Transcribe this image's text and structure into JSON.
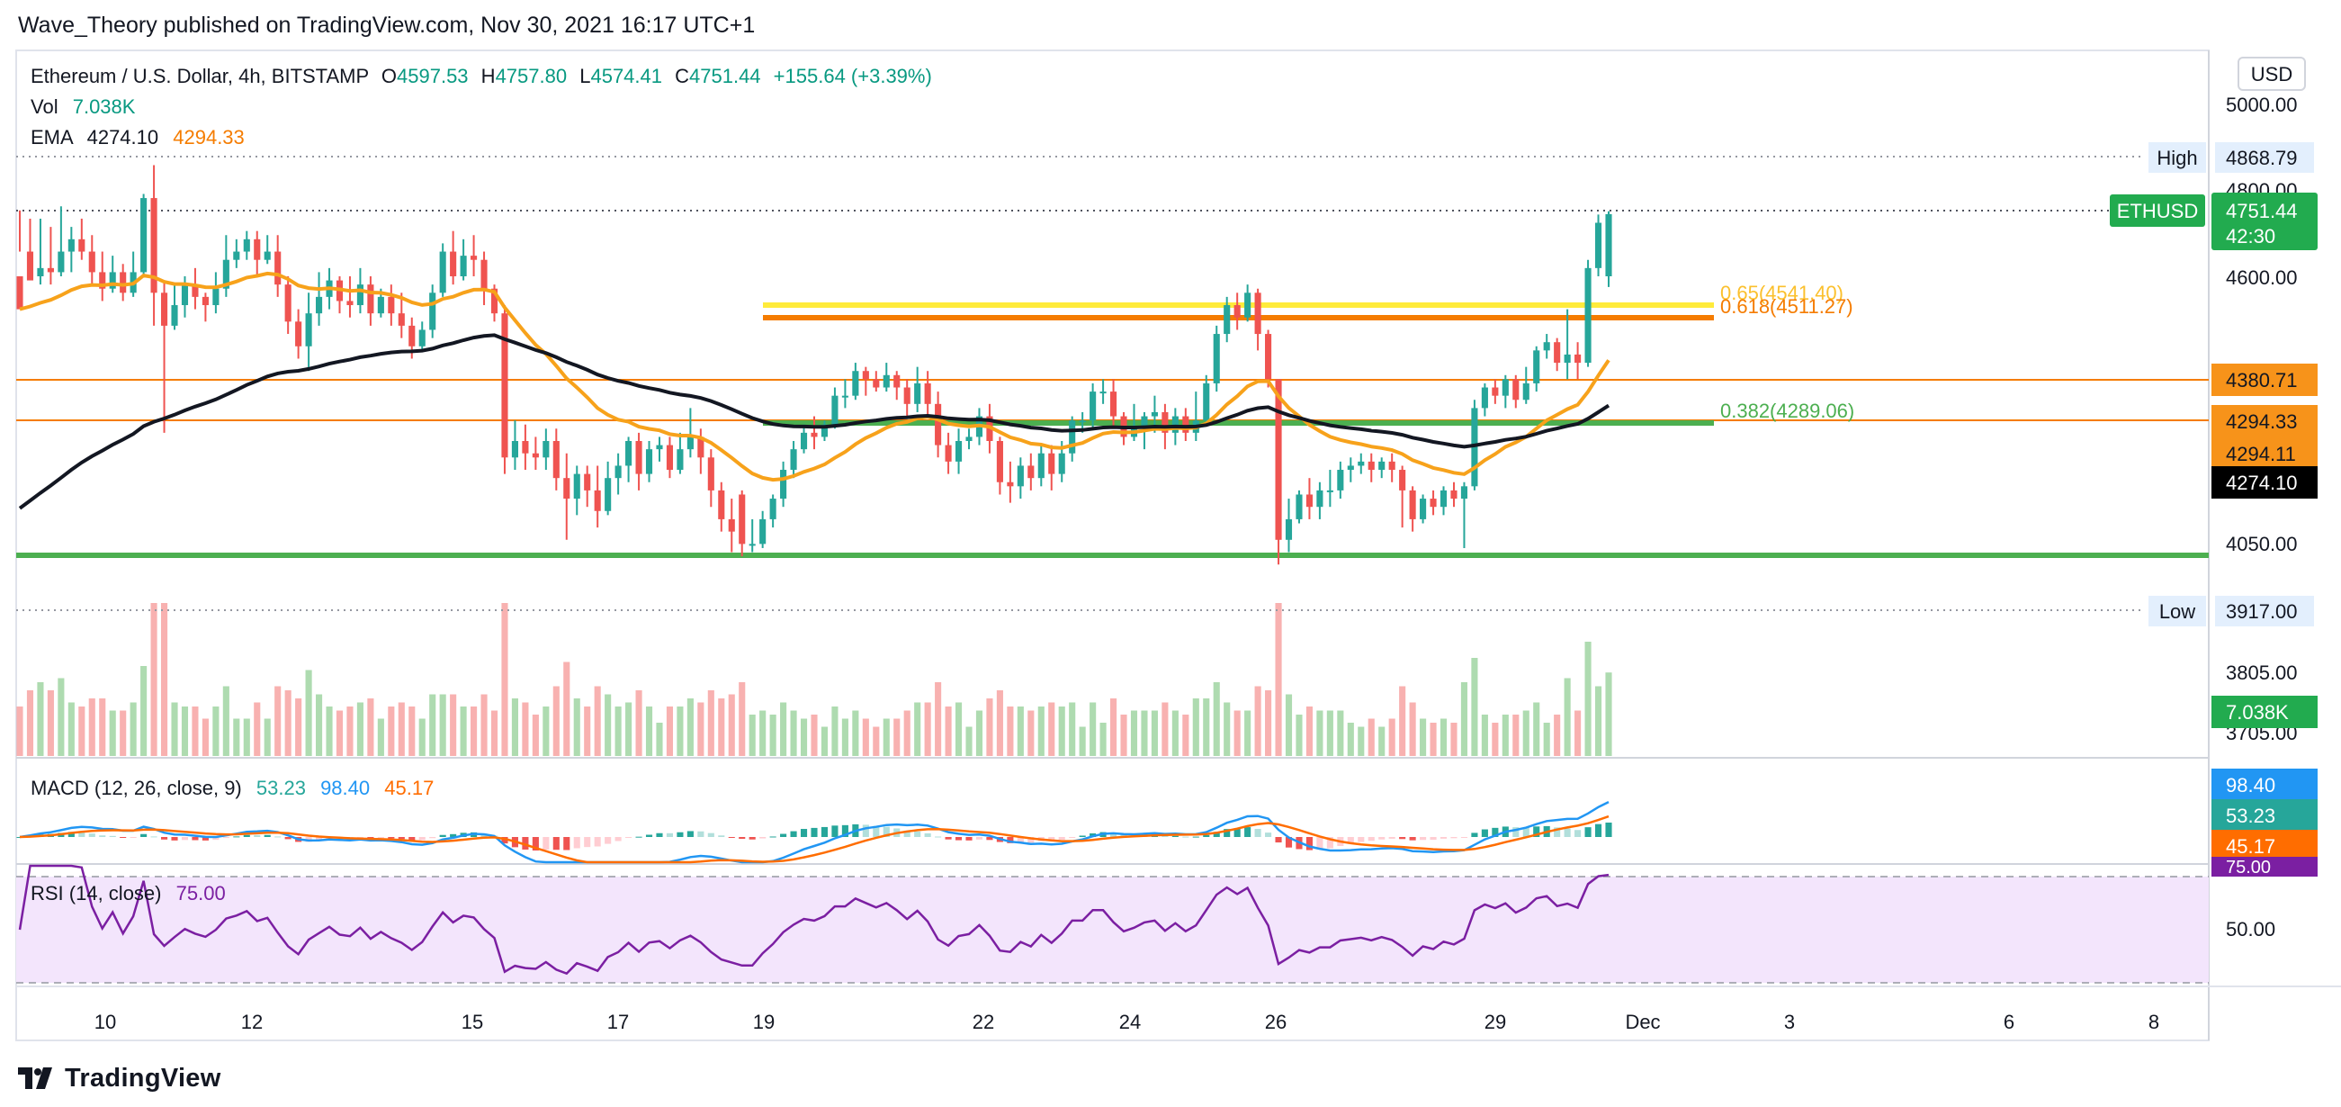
{
  "header": {
    "published": "Wave_Theory published on TradingView.com, Nov 30, 2021 16:17 UTC+1"
  },
  "footer": {
    "brand": "TradingView"
  },
  "legend": {
    "symbol": "Ethereum / U.S. Dollar, 4h, BITSTAMP",
    "open_key": "O",
    "open": "4597.53",
    "high_key": "H",
    "high": "4757.80",
    "low_key": "L",
    "low": "4574.41",
    "close_key": "C",
    "close": "4751.44",
    "change": "+155.64 (+3.39%)",
    "vol_label": "Vol",
    "vol_value": "7.038K",
    "ema_label": "EMA",
    "ema_value_1": "4274.10",
    "ema_value_2": "4294.33"
  },
  "price_axis": {
    "currency": "USD",
    "ticks": [
      "5000.00",
      "4800.00",
      "4600.00",
      "4050.00",
      "3805.00",
      "3705.00"
    ],
    "high_label": "High",
    "high_value": "4868.79",
    "low_label": "Low",
    "low_value": "3917.00",
    "symbol_tag": "ETHUSD",
    "last_price": "4751.44",
    "countdown": "42:30",
    "badges": {
      "level_upper": "4380.71",
      "ema_orange": "4294.33",
      "level_lower": "4294.11",
      "ema_black": "4274.10",
      "volume": "7.038K"
    }
  },
  "fib_levels": [
    {
      "label": "0.65(4541.40)",
      "color": "#fbc02d"
    },
    {
      "label": "0.618(4511.27)",
      "color": "#f57c00"
    },
    {
      "label": "0.382(4289.06)",
      "color": "#4caf50"
    }
  ],
  "macd_pane": {
    "title": "MACD (12, 26, close, 9)",
    "hist": "53.23",
    "macd": "98.40",
    "signal": "45.17",
    "colors": {
      "hist": "#26a69a",
      "macd": "#2196f3",
      "signal": "#ff6d00"
    }
  },
  "rsi_pane": {
    "title": "RSI (14, close)",
    "value": "75.00",
    "tick": "50.00"
  },
  "time_axis": {
    "ticks": [
      "10",
      "12",
      "15",
      "17",
      "19",
      "22",
      "24",
      "26",
      "29",
      "Dec",
      "3",
      "6",
      "8"
    ]
  },
  "chart_data": {
    "type": "candlestick",
    "symbol": "Ethereum / U.S. Dollar",
    "interval": "4h",
    "ylim": [
      3700,
      5000
    ],
    "candles": [
      [
        4600,
        4520,
        4760,
        4660
      ],
      [
        4660,
        4590,
        4740,
        4600
      ],
      [
        4600,
        4620,
        4740,
        4580
      ],
      [
        4620,
        4610,
        4720,
        4580
      ],
      [
        4610,
        4660,
        4770,
        4600
      ],
      [
        4660,
        4690,
        4720,
        4610
      ],
      [
        4690,
        4660,
        4740,
        4640
      ],
      [
        4660,
        4610,
        4700,
        4580
      ],
      [
        4610,
        4570,
        4660,
        4540
      ],
      [
        4570,
        4610,
        4650,
        4560
      ],
      [
        4610,
        4560,
        4630,
        4540
      ],
      [
        4560,
        4610,
        4660,
        4550
      ],
      [
        4610,
        4790,
        4800,
        4600
      ],
      [
        4790,
        4560,
        4870,
        4480
      ],
      [
        4560,
        4480,
        4590,
        4220
      ],
      [
        4480,
        4530,
        4580,
        4470
      ],
      [
        4530,
        4580,
        4600,
        4500
      ],
      [
        4580,
        4550,
        4620,
        4520
      ],
      [
        4550,
        4530,
        4560,
        4490
      ],
      [
        4530,
        4570,
        4610,
        4510
      ],
      [
        4570,
        4640,
        4700,
        4550
      ],
      [
        4640,
        4660,
        4690,
        4620
      ],
      [
        4660,
        4690,
        4710,
        4640
      ],
      [
        4690,
        4640,
        4710,
        4600
      ],
      [
        4640,
        4660,
        4700,
        4630
      ],
      [
        4660,
        4580,
        4700,
        4550
      ],
      [
        4580,
        4490,
        4600,
        4460
      ],
      [
        4490,
        4430,
        4520,
        4400
      ],
      [
        4430,
        4510,
        4560,
        4370
      ],
      [
        4510,
        4550,
        4610,
        4480
      ],
      [
        4550,
        4590,
        4620,
        4520
      ],
      [
        4590,
        4540,
        4600,
        4510
      ],
      [
        4540,
        4530,
        4600,
        4500
      ],
      [
        4530,
        4580,
        4620,
        4510
      ],
      [
        4580,
        4510,
        4600,
        4480
      ],
      [
        4510,
        4550,
        4570,
        4500
      ],
      [
        4550,
        4510,
        4580,
        4480
      ],
      [
        4510,
        4480,
        4560,
        4450
      ],
      [
        4480,
        4430,
        4500,
        4400
      ],
      [
        4430,
        4470,
        4490,
        4420
      ],
      [
        4470,
        4560,
        4580,
        4450
      ],
      [
        4560,
        4660,
        4680,
        4550
      ],
      [
        4660,
        4600,
        4710,
        4580
      ],
      [
        4600,
        4650,
        4690,
        4590
      ],
      [
        4650,
        4640,
        4700,
        4600
      ],
      [
        4640,
        4570,
        4660,
        4530
      ],
      [
        4570,
        4510,
        4580,
        4490
      ],
      [
        4510,
        4160,
        4530,
        4120
      ],
      [
        4160,
        4200,
        4250,
        4130
      ],
      [
        4200,
        4170,
        4240,
        4130
      ],
      [
        4170,
        4160,
        4210,
        4130
      ],
      [
        4160,
        4200,
        4230,
        4130
      ],
      [
        4200,
        4110,
        4230,
        4080
      ],
      [
        4110,
        4060,
        4170,
        3960
      ],
      [
        4060,
        4120,
        4140,
        4020
      ],
      [
        4120,
        4080,
        4140,
        4040
      ],
      [
        4080,
        4030,
        4140,
        3990
      ],
      [
        4030,
        4110,
        4150,
        4020
      ],
      [
        4110,
        4140,
        4170,
        4070
      ],
      [
        4140,
        4200,
        4210,
        4100
      ],
      [
        4200,
        4120,
        4220,
        4080
      ],
      [
        4120,
        4180,
        4200,
        4100
      ],
      [
        4180,
        4190,
        4210,
        4150
      ],
      [
        4190,
        4130,
        4210,
        4110
      ],
      [
        4130,
        4180,
        4220,
        4120
      ],
      [
        4180,
        4210,
        4280,
        4160
      ],
      [
        4210,
        4160,
        4230,
        4120
      ],
      [
        4160,
        4080,
        4180,
        4040
      ],
      [
        4080,
        4010,
        4100,
        3980
      ],
      [
        4010,
        3980,
        4060,
        3930
      ],
      [
        4070,
        3950,
        4080,
        3920
      ],
      [
        3950,
        3950,
        4010,
        3930
      ],
      [
        3950,
        4010,
        4030,
        3940
      ],
      [
        4010,
        4060,
        4070,
        3990
      ],
      [
        4060,
        4130,
        4150,
        4040
      ],
      [
        4130,
        4180,
        4200,
        4110
      ],
      [
        4180,
        4220,
        4240,
        4170
      ],
      [
        4220,
        4210,
        4260,
        4180
      ],
      [
        4210,
        4240,
        4250,
        4200
      ],
      [
        4240,
        4310,
        4330,
        4230
      ],
      [
        4310,
        4310,
        4350,
        4280
      ],
      [
        4310,
        4370,
        4390,
        4300
      ],
      [
        4370,
        4350,
        4380,
        4310
      ],
      [
        4350,
        4330,
        4370,
        4320
      ],
      [
        4330,
        4360,
        4390,
        4320
      ],
      [
        4360,
        4330,
        4370,
        4300
      ],
      [
        4330,
        4290,
        4350,
        4260
      ],
      [
        4290,
        4340,
        4380,
        4270
      ],
      [
        4340,
        4290,
        4370,
        4260
      ],
      [
        4290,
        4190,
        4320,
        4160
      ],
      [
        4190,
        4150,
        4220,
        4120
      ],
      [
        4150,
        4200,
        4230,
        4120
      ],
      [
        4200,
        4210,
        4230,
        4180
      ],
      [
        4210,
        4260,
        4280,
        4190
      ],
      [
        4260,
        4200,
        4290,
        4170
      ],
      [
        4200,
        4100,
        4210,
        4070
      ],
      [
        4100,
        4090,
        4150,
        4050
      ],
      [
        4090,
        4140,
        4160,
        4060
      ],
      [
        4140,
        4110,
        4170,
        4080
      ],
      [
        4110,
        4170,
        4190,
        4090
      ],
      [
        4170,
        4120,
        4190,
        4080
      ],
      [
        4120,
        4170,
        4200,
        4100
      ],
      [
        4170,
        4250,
        4260,
        4150
      ],
      [
        4250,
        4250,
        4270,
        4220
      ],
      [
        4250,
        4320,
        4340,
        4230
      ],
      [
        4320,
        4320,
        4350,
        4290
      ],
      [
        4320,
        4260,
        4350,
        4230
      ],
      [
        4260,
        4210,
        4270,
        4190
      ],
      [
        4210,
        4230,
        4290,
        4200
      ],
      [
        4230,
        4260,
        4270,
        4180
      ],
      [
        4260,
        4270,
        4310,
        4220
      ],
      [
        4270,
        4220,
        4290,
        4180
      ],
      [
        4220,
        4260,
        4280,
        4190
      ],
      [
        4260,
        4220,
        4280,
        4200
      ],
      [
        4220,
        4250,
        4320,
        4200
      ],
      [
        4250,
        4340,
        4360,
        4240
      ],
      [
        4340,
        4460,
        4480,
        4320
      ],
      [
        4460,
        4530,
        4550,
        4440
      ],
      [
        4530,
        4500,
        4560,
        4470
      ],
      [
        4500,
        4560,
        4580,
        4490
      ],
      [
        4560,
        4460,
        4570,
        4420
      ],
      [
        4460,
        4350,
        4470,
        4330
      ],
      [
        4350,
        3960,
        4350,
        3900
      ],
      [
        3960,
        4010,
        4060,
        3930
      ],
      [
        4010,
        4070,
        4080,
        4000
      ],
      [
        4070,
        4040,
        4110,
        4010
      ],
      [
        4040,
        4080,
        4100,
        4010
      ],
      [
        4080,
        4080,
        4130,
        4040
      ],
      [
        4080,
        4130,
        4150,
        4060
      ],
      [
        4130,
        4140,
        4160,
        4100
      ],
      [
        4140,
        4150,
        4170,
        4120
      ],
      [
        4150,
        4130,
        4170,
        4100
      ],
      [
        4130,
        4150,
        4160,
        4110
      ],
      [
        4150,
        4130,
        4170,
        4100
      ],
      [
        4130,
        4080,
        4140,
        3990
      ],
      [
        4080,
        4010,
        4090,
        3980
      ],
      [
        4010,
        4060,
        4070,
        4000
      ],
      [
        4060,
        4040,
        4080,
        4020
      ],
      [
        4040,
        4080,
        4090,
        4020
      ],
      [
        4080,
        4060,
        4100,
        4040
      ],
      [
        4060,
        4090,
        4100,
        3940
      ],
      [
        4090,
        4280,
        4300,
        4080
      ],
      [
        4280,
        4330,
        4340,
        4260
      ],
      [
        4330,
        4310,
        4350,
        4290
      ],
      [
        4310,
        4350,
        4360,
        4280
      ],
      [
        4350,
        4300,
        4360,
        4280
      ],
      [
        4300,
        4340,
        4380,
        4290
      ],
      [
        4340,
        4420,
        4430,
        4320
      ],
      [
        4420,
        4440,
        4460,
        4400
      ],
      [
        4440,
        4390,
        4450,
        4370
      ],
      [
        4390,
        4410,
        4520,
        4350
      ],
      [
        4410,
        4390,
        4440,
        4350
      ],
      [
        4390,
        4620,
        4640,
        4380
      ],
      [
        4620,
        4730,
        4750,
        4600
      ],
      [
        4600,
        4751,
        4758,
        4574
      ]
    ],
    "ema_black_last": 4274.1,
    "ema_orange_last": 4294.33,
    "rsi_last": 75.0,
    "macd_last": 98.4,
    "signal_last": 45.17,
    "hist_last": 53.23
  }
}
